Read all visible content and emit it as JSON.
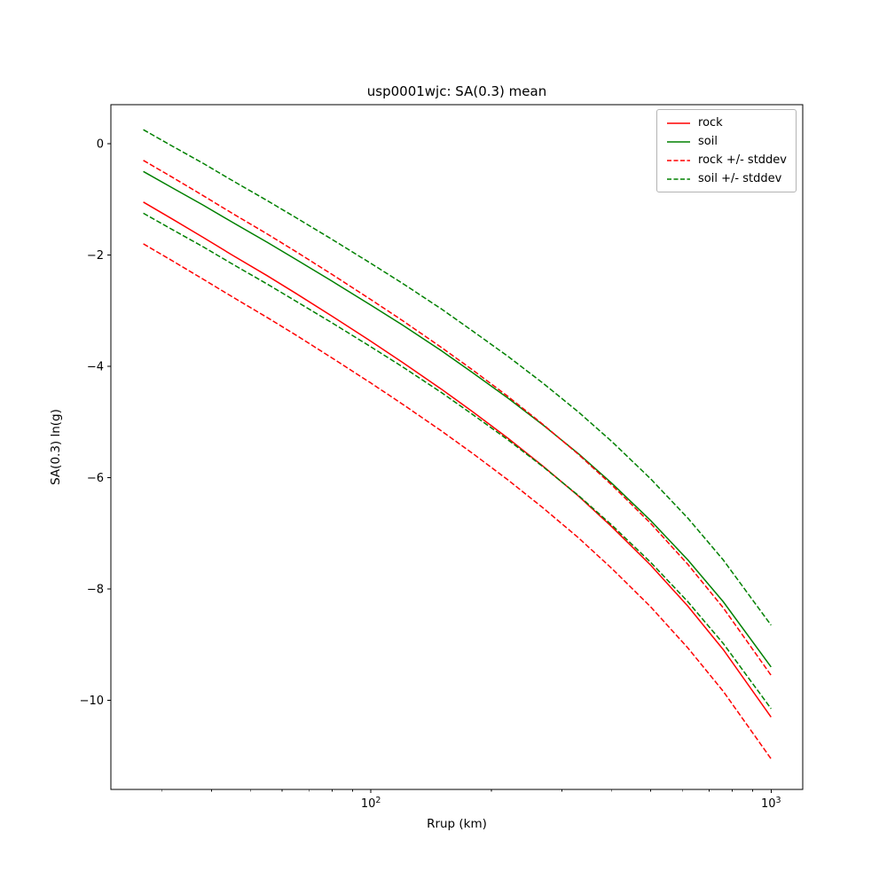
{
  "figure": {
    "background": "#ffffff"
  },
  "chart_data": {
    "type": "line",
    "title": "usp0001wjc: SA(0.3) mean",
    "xlabel": "Rrup (km)",
    "ylabel": "SA(0.3) ln(g)",
    "x_scale": "log",
    "grid": false,
    "legend_position": "upper right",
    "xlim": [
      22.4,
      1200
    ],
    "ylim": [
      -11.6,
      0.7
    ],
    "x_major_ticks": [
      {
        "value": 100,
        "mantissa": "10",
        "exponent": "2"
      },
      {
        "value": 1000,
        "mantissa": "10",
        "exponent": "3"
      }
    ],
    "x_minor_ticks": [
      30,
      40,
      50,
      60,
      70,
      80,
      90,
      200,
      300,
      400,
      500,
      600,
      700,
      800,
      900
    ],
    "y_ticks": [
      0,
      -2,
      -4,
      -6,
      -8,
      -10
    ],
    "colors": {
      "rock": "#ff0000",
      "soil": "#008000"
    },
    "x": [
      27,
      32,
      38,
      45,
      55,
      65,
      80,
      100,
      120,
      150,
      180,
      220,
      270,
      330,
      400,
      500,
      620,
      760,
      1000
    ],
    "series": [
      {
        "name": "rock",
        "legend_label": "rock",
        "color": "#ff0000",
        "style": "solid",
        "in_legend": true,
        "values": [
          -1.05,
          -1.36,
          -1.68,
          -2.0,
          -2.37,
          -2.69,
          -3.1,
          -3.55,
          -3.93,
          -4.41,
          -4.82,
          -5.29,
          -5.8,
          -6.33,
          -6.88,
          -7.57,
          -8.31,
          -9.09,
          -10.3
        ]
      },
      {
        "name": "soil",
        "legend_label": "soil",
        "color": "#008000",
        "style": "solid",
        "in_legend": true,
        "values": [
          -0.5,
          -0.8,
          -1.1,
          -1.41,
          -1.77,
          -2.08,
          -2.47,
          -2.9,
          -3.26,
          -3.72,
          -4.12,
          -4.57,
          -5.06,
          -5.57,
          -6.1,
          -6.77,
          -7.48,
          -8.23,
          -9.4
        ]
      },
      {
        "name": "rock-plus-stddev",
        "legend_label": "rock +/- stddev",
        "color": "#ff0000",
        "style": "dashed",
        "in_legend": true,
        "values": [
          -0.3,
          -0.61,
          -0.93,
          -1.25,
          -1.62,
          -1.94,
          -2.35,
          -2.8,
          -3.18,
          -3.66,
          -4.07,
          -4.54,
          -5.05,
          -5.58,
          -6.13,
          -6.82,
          -7.56,
          -8.34,
          -9.55
        ]
      },
      {
        "name": "rock-minus-stddev",
        "legend_label": "",
        "color": "#ff0000",
        "style": "dashed",
        "in_legend": false,
        "values": [
          -1.8,
          -2.11,
          -2.43,
          -2.75,
          -3.12,
          -3.44,
          -3.85,
          -4.3,
          -4.68,
          -5.16,
          -5.57,
          -6.04,
          -6.55,
          -7.08,
          -7.63,
          -8.32,
          -9.06,
          -9.84,
          -11.05
        ]
      },
      {
        "name": "soil-plus-stddev",
        "legend_label": "soil +/- stddev",
        "color": "#008000",
        "style": "dashed",
        "in_legend": true,
        "values": [
          0.25,
          -0.05,
          -0.35,
          -0.66,
          -1.02,
          -1.33,
          -1.72,
          -2.15,
          -2.51,
          -2.97,
          -3.37,
          -3.82,
          -4.31,
          -4.82,
          -5.35,
          -6.02,
          -6.73,
          -7.48,
          -8.65
        ]
      },
      {
        "name": "soil-minus-stddev",
        "legend_label": "",
        "color": "#008000",
        "style": "dashed",
        "in_legend": false,
        "values": [
          -1.25,
          -1.55,
          -1.85,
          -2.16,
          -2.52,
          -2.83,
          -3.22,
          -3.65,
          -4.01,
          -4.47,
          -4.87,
          -5.32,
          -5.81,
          -6.32,
          -6.85,
          -7.52,
          -8.23,
          -8.98,
          -10.15
        ]
      }
    ]
  }
}
